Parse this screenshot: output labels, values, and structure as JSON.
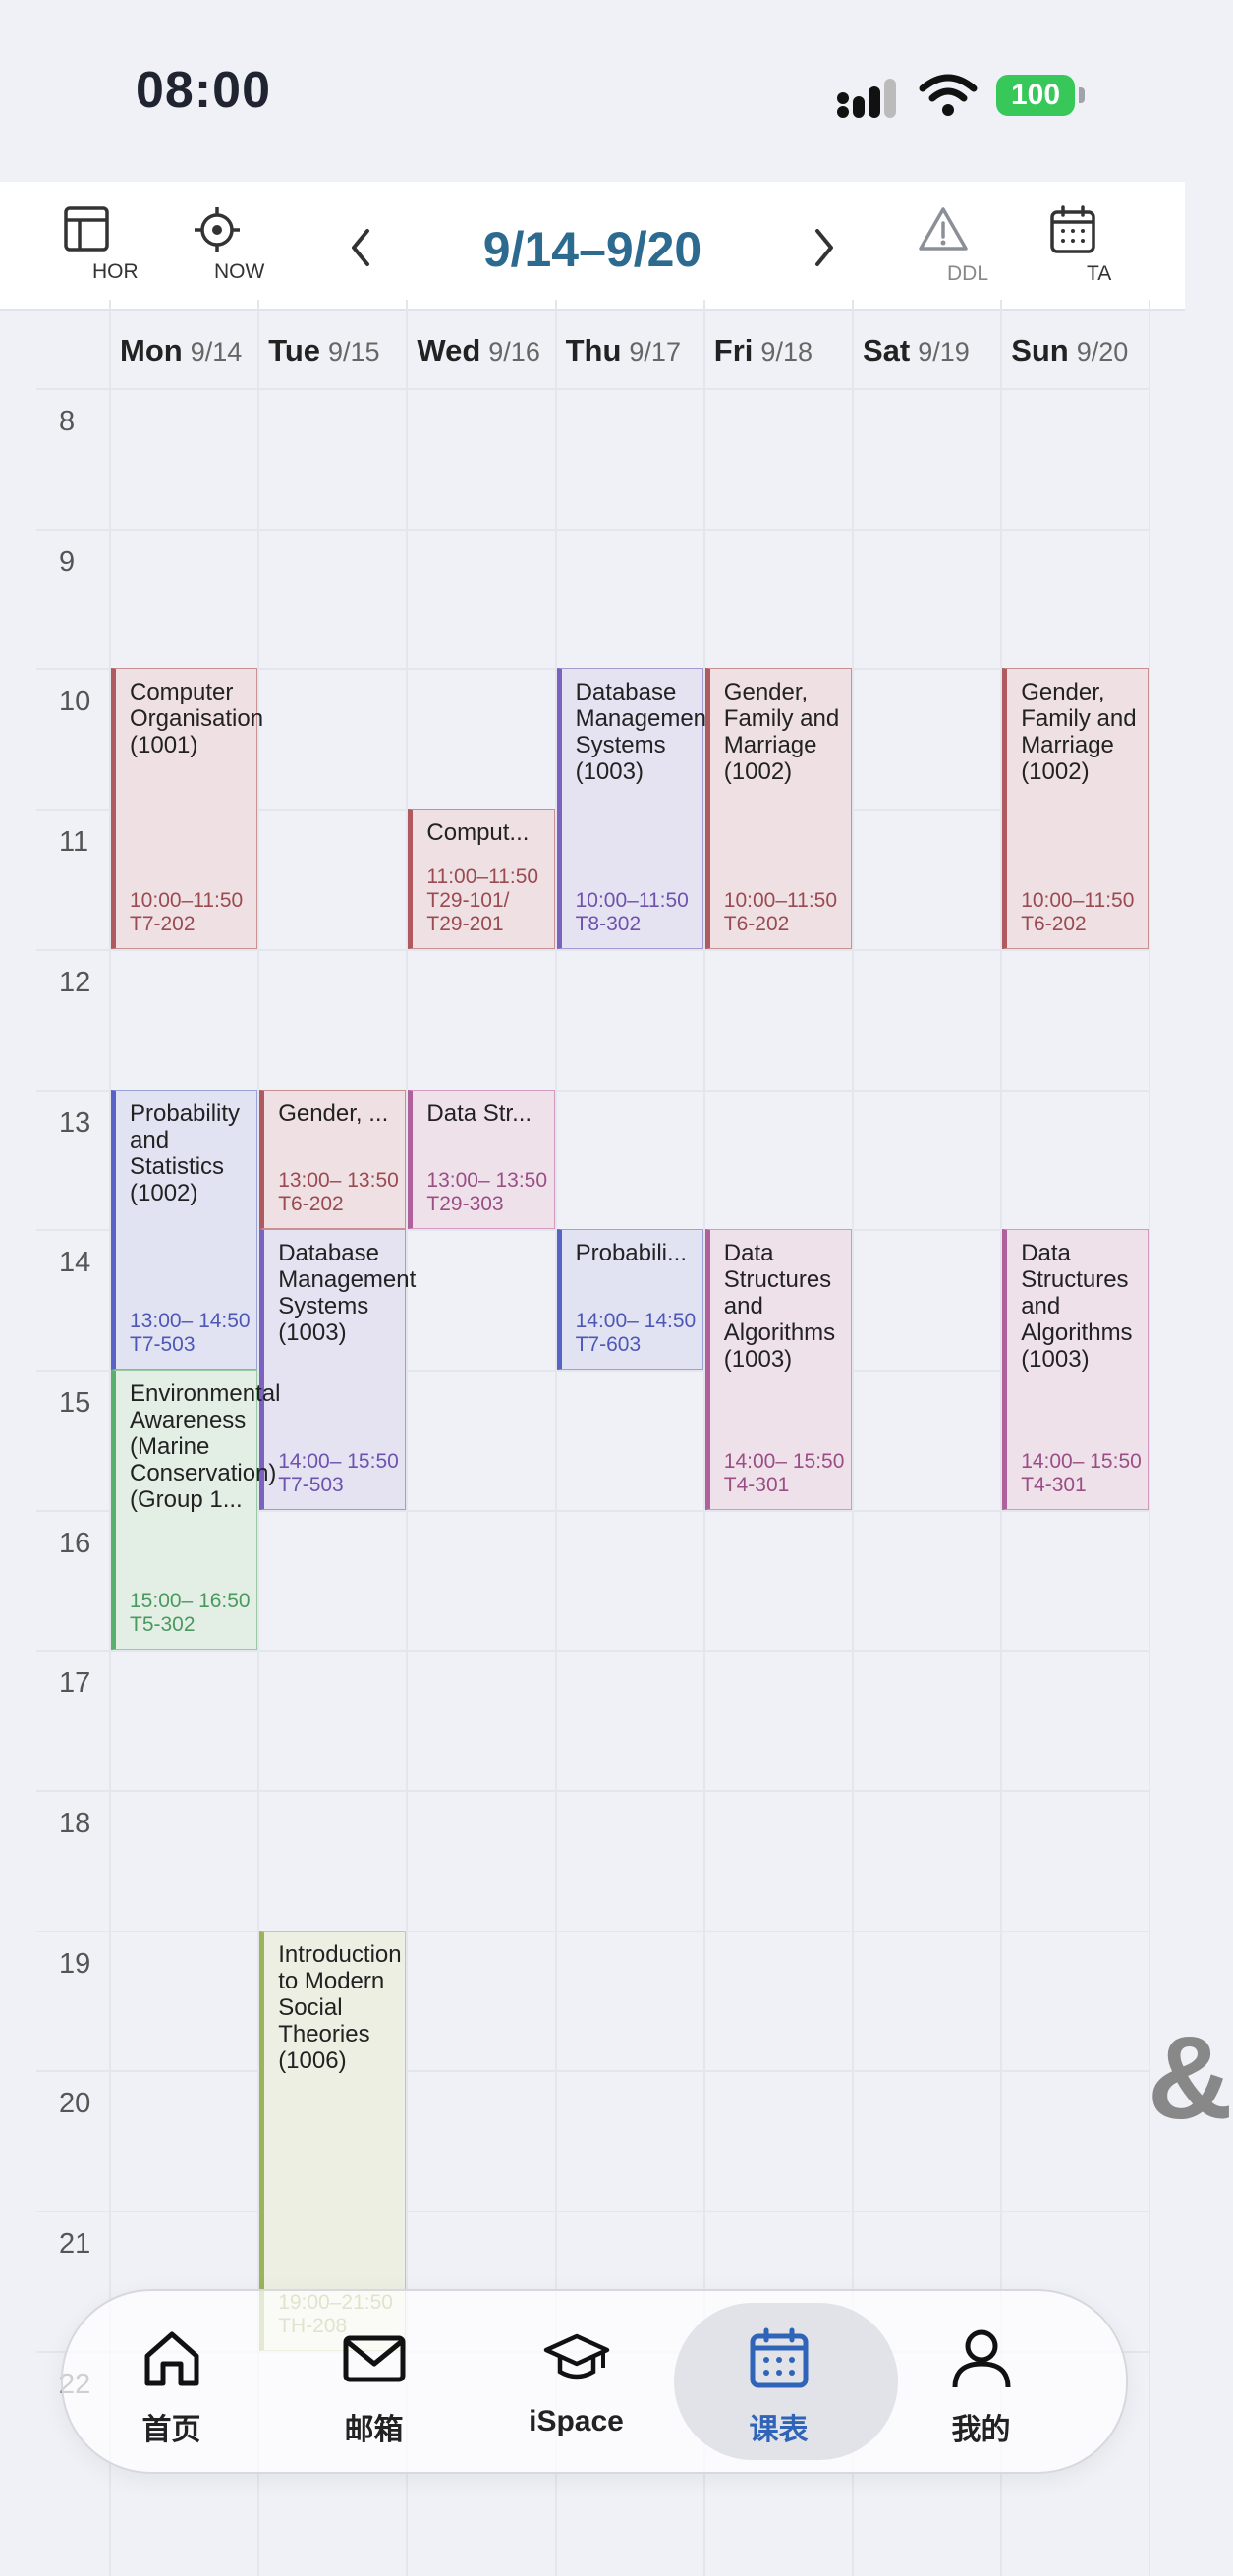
{
  "status": {
    "time": "08:00",
    "battery": "100"
  },
  "toolbar": {
    "hor_label": "HOR",
    "now_label": "NOW",
    "range": "9/14–9/20",
    "ddl_label": "DDL",
    "ta_label": "TA"
  },
  "days": [
    {
      "name": "Mon",
      "date": "9/14"
    },
    {
      "name": "Tue",
      "date": "9/15"
    },
    {
      "name": "Wed",
      "date": "9/16"
    },
    {
      "name": "Thu",
      "date": "9/17"
    },
    {
      "name": "Fri",
      "date": "9/18"
    },
    {
      "name": "Sat",
      "date": "9/19"
    },
    {
      "name": "Sun",
      "date": "9/20"
    }
  ],
  "hours": [
    "8",
    "9",
    "10",
    "11",
    "12",
    "13",
    "14",
    "15",
    "16",
    "17",
    "18",
    "19",
    "20",
    "21",
    "22"
  ],
  "events": [
    {
      "day": 0,
      "title": "Computer Organisation (1001)",
      "time": "10:00–11:50",
      "room": "T7-202",
      "color": "red"
    },
    {
      "day": 2,
      "title": "Comput...",
      "time": "11:00–11:50",
      "room": "T29-101/ T29-201",
      "color": "red"
    },
    {
      "day": 3,
      "title": "Database Management Systems (1003)",
      "time": "10:00–11:50",
      "room": "T8-302",
      "color": "purple"
    },
    {
      "day": 4,
      "title": "Gender, Family and Marriage (1002)",
      "time": "10:00–11:50",
      "room": "T6-202",
      "color": "red"
    },
    {
      "day": 6,
      "title": "Gender, Family and Marriage (1002)",
      "time": "10:00–11:50",
      "room": "T6-202",
      "color": "red"
    },
    {
      "day": 0,
      "title": "Probability and Statistics (1002)",
      "time": "13:00– 14:50",
      "room": "T7-503",
      "color": "blue"
    },
    {
      "day": 1,
      "title": "Gender, ...",
      "time": "13:00– 13:50",
      "room": "T6-202",
      "color": "red"
    },
    {
      "day": 2,
      "title": "Data Str...",
      "time": "13:00– 13:50",
      "room": "T29-303",
      "color": "pink"
    },
    {
      "day": 1,
      "title": "Database Management Systems (1003)",
      "time": "14:00– 15:50",
      "room": "T7-503",
      "color": "purple"
    },
    {
      "day": 3,
      "title": "Probabili...",
      "time": "14:00– 14:50",
      "room": "T7-603",
      "color": "blue"
    },
    {
      "day": 4,
      "title": "Data Structures and Algorithms (1003)",
      "time": "14:00– 15:50",
      "room": "T4-301",
      "color": "pink"
    },
    {
      "day": 6,
      "title": "Data Structures and Algorithms (1003)",
      "time": "14:00– 15:50",
      "room": "T4-301",
      "color": "pink"
    },
    {
      "day": 0,
      "title": "Environmental Awareness (Marine Conservation) (Group 1...",
      "time": "15:00– 16:50",
      "room": "T5-302",
      "color": "green"
    },
    {
      "day": 1,
      "title": "Introduction to Modern Social Theories (1006)",
      "time": "19:00–21:50",
      "room": "TH-208",
      "color": "olive"
    }
  ],
  "tabs": [
    {
      "label": "首页",
      "icon": "home-icon"
    },
    {
      "label": "邮箱",
      "icon": "mail-icon"
    },
    {
      "label": "iSpace",
      "icon": "graduation-cap-icon"
    },
    {
      "label": "课表",
      "icon": "calendar-icon",
      "active": true
    },
    {
      "label": "我的",
      "icon": "person-icon"
    }
  ],
  "colors": {
    "accent": "#2f64b8",
    "range_text": "#2c6a8f",
    "battery": "#38c759"
  }
}
